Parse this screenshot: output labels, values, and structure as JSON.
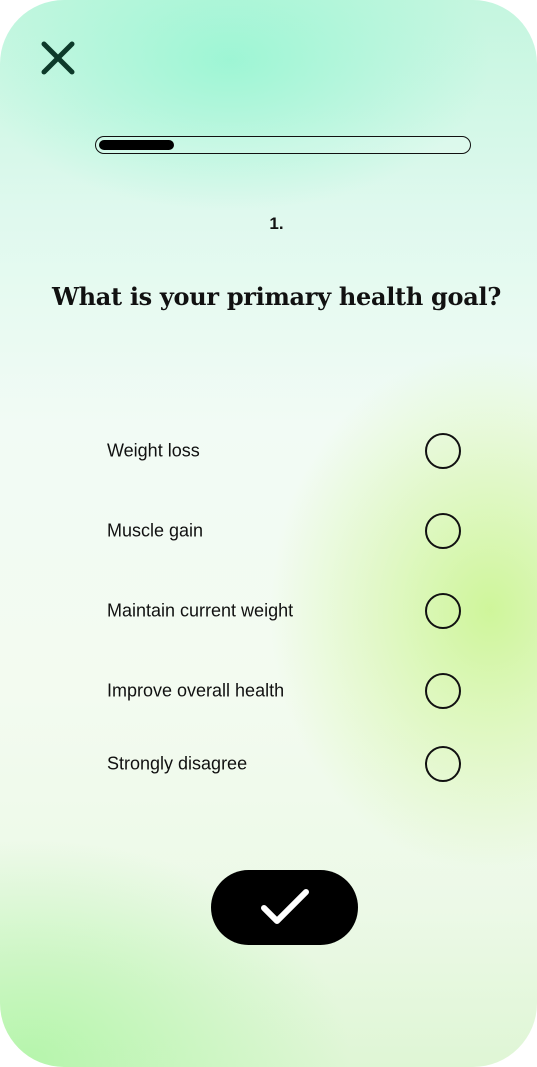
{
  "quiz": {
    "progress_fraction": 0.2,
    "question_number": "1.",
    "question_text": "What is your primary health goal?",
    "options": [
      {
        "label": "Weight loss",
        "selected": false
      },
      {
        "label": "Muscle gain",
        "selected": false
      },
      {
        "label": "Maintain current weight",
        "selected": false
      },
      {
        "label": "Improve overall health",
        "selected": false
      },
      {
        "label": "Strongly disagree",
        "selected": false
      }
    ]
  },
  "icons": {
    "close": "close-icon",
    "submit": "checkmark-icon"
  },
  "colors": {
    "ink": "#111111",
    "button": "#000000",
    "gradient_mint": "#c4f6df",
    "gradient_lime": "#cdf596"
  }
}
